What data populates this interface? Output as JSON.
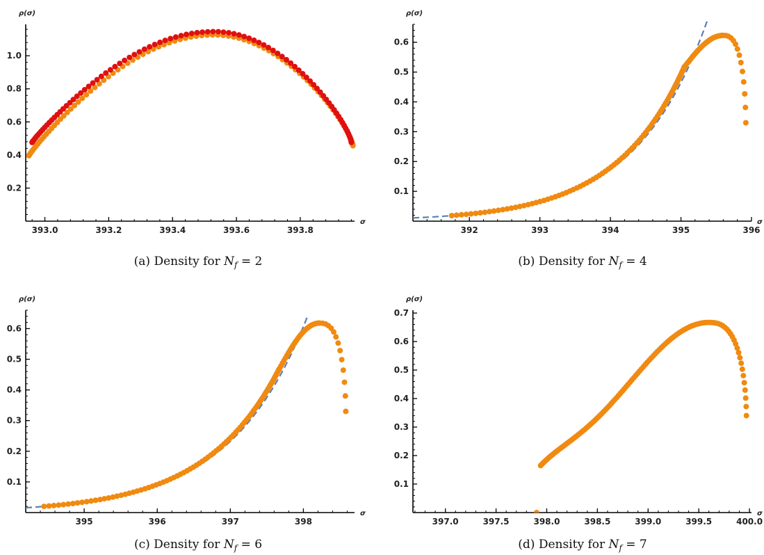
{
  "chart_data": [
    {
      "type": "scatter",
      "caption": {
        "prefix": "(a) Density for ",
        "var": "N",
        "sub": "f",
        "suffix": " = 2"
      },
      "xlabel": "σ",
      "ylabel": "ρ(σ)",
      "xlim": [
        392.94,
        393.97
      ],
      "ylim": [
        0.0,
        1.19
      ],
      "xticks": [
        393.0,
        393.2,
        393.4,
        393.6,
        393.8
      ],
      "xtick_labels": [
        "393.0",
        "393.2",
        "393.4",
        "393.6",
        "393.8"
      ],
      "yticks": [
        0.2,
        0.4,
        0.6,
        0.8,
        1.0
      ],
      "ytick_labels": [
        "0.2",
        "0.4",
        "0.6",
        "0.8",
        "1.0"
      ],
      "fit_curve": false,
      "series": [
        {
          "color": "#f08a10",
          "kind": "arc",
          "xmin": 392.95,
          "xmax": 393.965,
          "peak_x": 393.53,
          "peak_y": 1.13,
          "start_y": 0.4,
          "end_y": 0.46,
          "n": 95,
          "shift": -0.004
        },
        {
          "color": "#e01010",
          "kind": "arc",
          "xmin": 392.96,
          "xmax": 393.96,
          "peak_x": 393.53,
          "peak_y": 1.14,
          "start_y": 0.47,
          "end_y": 0.47,
          "n": 95,
          "shift": 0.006
        }
      ]
    },
    {
      "type": "scatter",
      "caption": {
        "prefix": "(b) Density for ",
        "var": "N",
        "sub": "f",
        "suffix": " = 4"
      },
      "xlabel": "σ",
      "ylabel": "ρ(σ)",
      "xlim": [
        391.2,
        396.0
      ],
      "ylim": [
        0.0,
        0.66
      ],
      "xticks": [
        392,
        393,
        394,
        395,
        396
      ],
      "xtick_labels": [
        "392",
        "393",
        "394",
        "395",
        "396"
      ],
      "yticks": [
        0.1,
        0.2,
        0.3,
        0.4,
        0.5,
        0.6
      ],
      "ytick_labels": [
        "0.1",
        "0.2",
        "0.3",
        "0.4",
        "0.5",
        "0.6"
      ],
      "fit_curve": true,
      "fit": {
        "a": 0.0108,
        "b": 0.99,
        "x0": 391.2,
        "xend": 395.42,
        "color": "#5b7fb5"
      },
      "series": [
        {
          "color": "#f08a10",
          "kind": "skew",
          "x_first": 391.75,
          "peak_x": 395.6,
          "peak_y": 0.623,
          "x_end": 395.92,
          "end_y": 0.33,
          "a": 0.0108,
          "b": 0.99,
          "x0": 391.2,
          "n": 130
        }
      ]
    },
    {
      "type": "scatter",
      "caption": {
        "prefix": "(c) Density for ",
        "var": "N",
        "sub": "f",
        "suffix": " = 6"
      },
      "xlabel": "σ",
      "ylabel": "ρ(σ)",
      "xlim": [
        394.2,
        398.7
      ],
      "ylim": [
        0.0,
        0.66
      ],
      "xticks": [
        395,
        396,
        397,
        398
      ],
      "xtick_labels": [
        "395",
        "396",
        "397",
        "398"
      ],
      "yticks": [
        0.1,
        0.2,
        0.3,
        0.4,
        0.5,
        0.6
      ],
      "ytick_labels": [
        "0.1",
        "0.2",
        "0.3",
        "0.4",
        "0.5",
        "0.6"
      ],
      "fit_curve": true,
      "fit": {
        "a": 0.0158,
        "b": 0.96,
        "x0": 394.2,
        "xend": 398.05,
        "color": "#5b7fb5"
      },
      "series": [
        {
          "color": "#f08a10",
          "kind": "skew",
          "x_first": 394.45,
          "peak_x": 398.22,
          "peak_y": 0.618,
          "x_end": 398.58,
          "end_y": 0.33,
          "a": 0.0158,
          "b": 0.96,
          "x0": 394.2,
          "n": 130
        }
      ]
    },
    {
      "type": "scatter",
      "caption": {
        "prefix": "(d) Density for ",
        "var": "N",
        "sub": "f",
        "suffix": " = 7"
      },
      "xlabel": "σ",
      "ylabel": "ρ(σ)",
      "xlim": [
        396.68,
        400.02
      ],
      "ylim": [
        0.0,
        0.71
      ],
      "xticks": [
        397.0,
        397.5,
        398.0,
        398.5,
        399.0,
        399.5,
        400.0
      ],
      "xtick_labels": [
        "397.0",
        "397.5",
        "398.0",
        "398.5",
        "399.0",
        "399.5",
        "400.0"
      ],
      "yticks": [
        0.1,
        0.2,
        0.3,
        0.4,
        0.5,
        0.6,
        0.7
      ],
      "ytick_labels": [
        "0.1",
        "0.2",
        "0.3",
        "0.4",
        "0.5",
        "0.6",
        "0.7"
      ],
      "fit_curve": false,
      "series": [
        {
          "color": "#f08a10",
          "kind": "shoulder",
          "x_first": 397.94,
          "start_y": 0.165,
          "peak_x": 399.6,
          "peak_y": 0.667,
          "x_end": 399.97,
          "end_y": 0.34,
          "isolated": [
            397.9,
            0.0
          ],
          "n": 120
        }
      ]
    }
  ]
}
